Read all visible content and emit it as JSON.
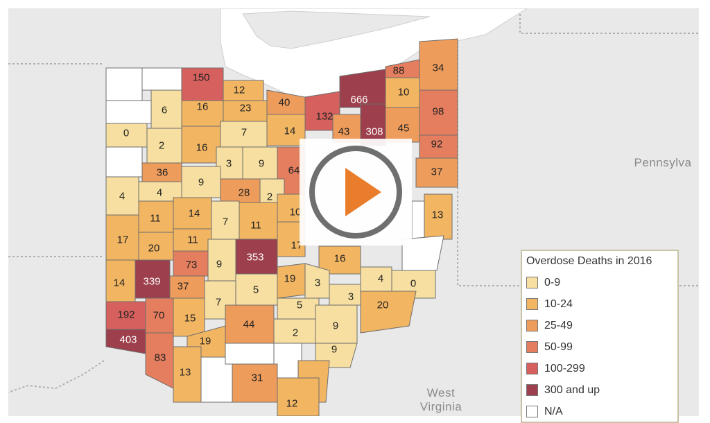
{
  "legend": {
    "title": "Overdose Deaths in 2016",
    "categories": [
      {
        "label": "0-9",
        "color": "#f6dfa0"
      },
      {
        "label": "10-24",
        "color": "#f2b562"
      },
      {
        "label": "25-49",
        "color": "#ee9c5b"
      },
      {
        "label": "50-99",
        "color": "#e57e5e"
      },
      {
        "label": "100-299",
        "color": "#d5605d"
      },
      {
        "label": "300 and up",
        "color": "#9d3f4c"
      },
      {
        "label": "N/A",
        "color": "#ffffff"
      }
    ]
  },
  "neighbors": {
    "pennsylvania": "Pennsylva",
    "west_virginia_1": "West",
    "west_virginia_2": "Virginia"
  },
  "colors": {
    "background": "#e9e9e9",
    "lake_water": "#ffffff",
    "county_border": "#6e6e6e"
  },
  "counties": {
    "c01": "150",
    "c02": "12",
    "c03": "16",
    "c04": "23",
    "c05": "40",
    "c06": "132",
    "c07": "666",
    "c08": "88",
    "c09": "34",
    "c10": "6",
    "c11": "10",
    "c12": "43",
    "c13": "308",
    "c14": "45",
    "c15": "98",
    "c16": "0",
    "c17": "2",
    "c18": "7",
    "c19": "14",
    "c20": "16",
    "c21": "92",
    "c22": "36",
    "c23": "3",
    "c24": "9",
    "c25": "64",
    "c26": "37",
    "c27": "9",
    "c28": "4",
    "c29": "4",
    "c30": "28",
    "c31": "2",
    "c32": "14",
    "c33": "11",
    "c34": "7",
    "c35": "11",
    "c36": "10",
    "c37": "13",
    "c38": "17",
    "c39": "20",
    "c40": "11",
    "c41": "17",
    "c42": "73",
    "c43": "9",
    "c44": "353",
    "c45": "16",
    "c46": "14",
    "c47": "339",
    "c48": "37",
    "c49": "19",
    "c50": "3",
    "c51": "4",
    "c52": "0",
    "c53": "5",
    "c54": "3",
    "c55": "7",
    "c56": "5",
    "c57": "192",
    "c58": "70",
    "c59": "15",
    "c60": "20",
    "c61": "44",
    "c62": "9",
    "c63": "403",
    "c64": "2",
    "c65": "19",
    "c66": "9",
    "c67": "83",
    "c68": "13",
    "c69": "31",
    "c70": "11",
    "c71": "12"
  }
}
